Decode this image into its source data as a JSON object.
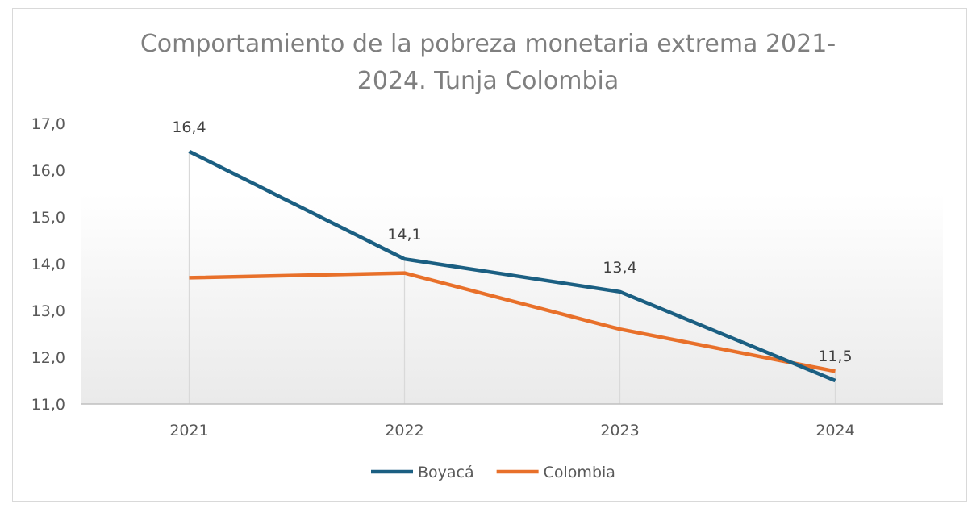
{
  "chart_data": {
    "type": "line",
    "title_line1": "Comportamiento de la pobreza monetaria extrema 2021-",
    "title_line2": "2024. Tunja Colombia",
    "categories": [
      "2021",
      "2022",
      "2023",
      "2024"
    ],
    "series": [
      {
        "name": "Boyacá",
        "color": "#1b5f82",
        "values": [
          16.4,
          14.1,
          13.4,
          11.5
        ],
        "data_labels": [
          "16,4",
          "14,1",
          "13,4",
          "11,5"
        ]
      },
      {
        "name": "Colombia",
        "color": "#e8702a",
        "values": [
          13.7,
          13.8,
          12.6,
          11.7
        ],
        "data_labels": []
      }
    ],
    "ylim": [
      11.0,
      17.0
    ],
    "yticks": [
      "11,0",
      "12,0",
      "13,0",
      "14,0",
      "15,0",
      "16,0",
      "17,0"
    ],
    "xlabel": "",
    "ylabel": "",
    "grid": "vertical drop lines",
    "legend_position": "bottom"
  }
}
